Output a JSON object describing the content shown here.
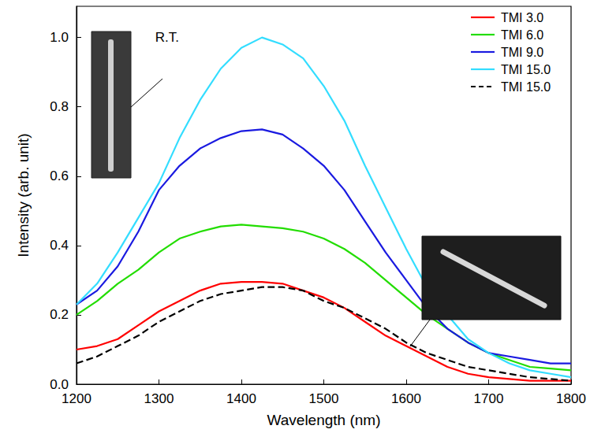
{
  "chart_data": {
    "type": "line",
    "xlabel": "Wavelength (nm)",
    "ylabel": "Intensity (arb. unit)",
    "x": [
      1200,
      1225,
      1250,
      1275,
      1300,
      1325,
      1350,
      1375,
      1400,
      1425,
      1450,
      1475,
      1500,
      1525,
      1550,
      1575,
      1600,
      1625,
      1650,
      1675,
      1700,
      1725,
      1750,
      1775,
      1800
    ],
    "series": [
      {
        "name": "TMI 3.0",
        "color": "#ff0000",
        "line_style": "solid",
        "values": [
          0.1,
          0.11,
          0.13,
          0.17,
          0.21,
          0.24,
          0.27,
          0.29,
          0.295,
          0.295,
          0.29,
          0.27,
          0.25,
          0.22,
          0.18,
          0.14,
          0.11,
          0.08,
          0.05,
          0.03,
          0.02,
          0.015,
          0.01,
          0.01,
          0.01
        ]
      },
      {
        "name": "TMI 6.0",
        "color": "#22dd00",
        "line_style": "solid",
        "values": [
          0.2,
          0.24,
          0.29,
          0.33,
          0.38,
          0.42,
          0.44,
          0.455,
          0.46,
          0.455,
          0.45,
          0.44,
          0.42,
          0.39,
          0.35,
          0.3,
          0.25,
          0.2,
          0.16,
          0.12,
          0.09,
          0.07,
          0.05,
          0.045,
          0.04
        ]
      },
      {
        "name": "TMI 9.0",
        "color": "#1a1ae0",
        "line_style": "solid",
        "values": [
          0.23,
          0.27,
          0.34,
          0.44,
          0.56,
          0.63,
          0.68,
          0.71,
          0.73,
          0.735,
          0.72,
          0.68,
          0.63,
          0.56,
          0.47,
          0.38,
          0.3,
          0.22,
          0.16,
          0.12,
          0.09,
          0.08,
          0.07,
          0.06,
          0.06
        ]
      },
      {
        "name": "TMI 15.0",
        "color": "#33ddff",
        "line_style": "solid",
        "values": [
          0.23,
          0.29,
          0.38,
          0.48,
          0.58,
          0.71,
          0.82,
          0.91,
          0.97,
          1.0,
          0.98,
          0.94,
          0.86,
          0.76,
          0.63,
          0.51,
          0.39,
          0.28,
          0.2,
          0.13,
          0.09,
          0.06,
          0.04,
          0.03,
          0.02
        ]
      },
      {
        "name": "TMI 15.0",
        "color": "#000000",
        "line_style": "dashed",
        "values": [
          0.06,
          0.08,
          0.11,
          0.14,
          0.18,
          0.21,
          0.24,
          0.26,
          0.27,
          0.28,
          0.28,
          0.27,
          0.24,
          0.22,
          0.19,
          0.16,
          0.12,
          0.09,
          0.07,
          0.05,
          0.04,
          0.03,
          0.02,
          0.015,
          0.01
        ]
      }
    ],
    "xlim": [
      1200,
      1800
    ],
    "xticks": [
      1200,
      1300,
      1400,
      1500,
      1600,
      1700,
      1800
    ],
    "ylim": [
      0,
      1.09
    ],
    "yticks": [
      {
        "value": 0,
        "label": "0.0"
      },
      {
        "value": 0.2,
        "label": "0.2"
      },
      {
        "value": 0.4,
        "label": "0.4"
      },
      {
        "value": 0.6,
        "label": "0.6"
      },
      {
        "value": 0.8,
        "label": "0.8"
      },
      {
        "value": 1.0,
        "label": "1.0"
      }
    ],
    "annotations": [
      {
        "text": "R.T.",
        "x": 1310,
        "y": 1.0
      }
    ],
    "grid": false,
    "legend": "upper right"
  }
}
